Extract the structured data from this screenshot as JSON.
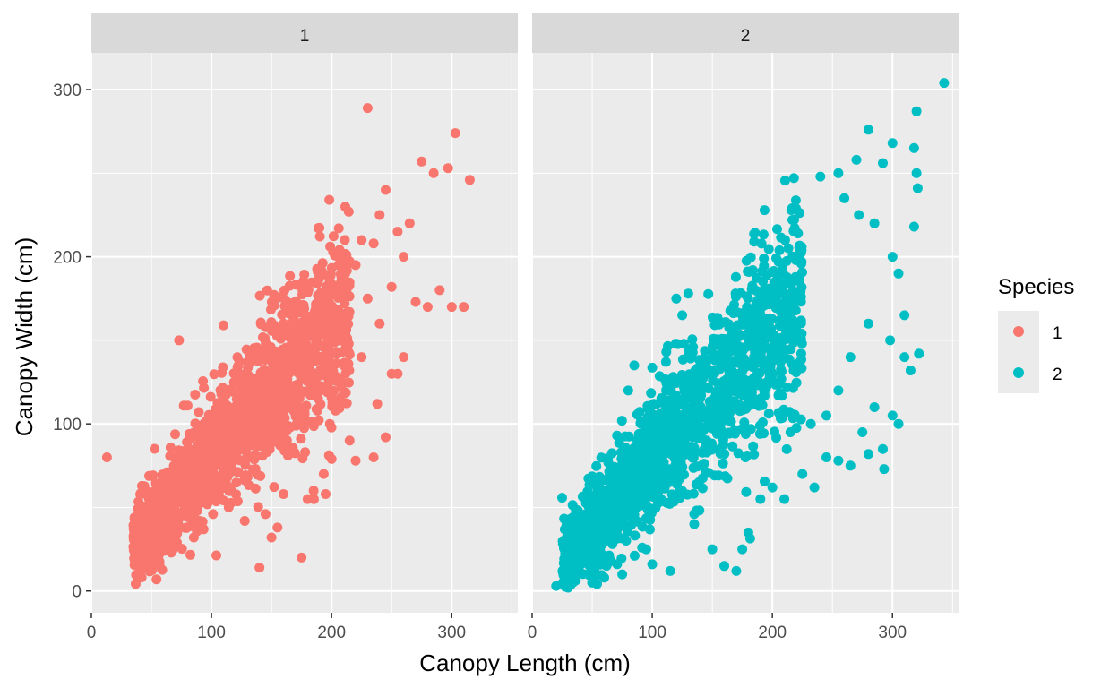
{
  "chart_data": {
    "type": "scatter",
    "xlabel": "Canopy Length (cm)",
    "ylabel": "Canopy Width (cm)",
    "xlim": [
      0,
      355
    ],
    "ylim": [
      -13,
      322
    ],
    "x_ticks": [
      0,
      100,
      200,
      300
    ],
    "y_ticks": [
      0,
      100,
      200,
      300
    ],
    "x_tick_labels": [
      "0",
      "100",
      "200",
      "300"
    ],
    "y_tick_labels": [
      "0",
      "100",
      "200",
      "300"
    ],
    "grid": true,
    "legend": {
      "title": "Species",
      "position": "right",
      "entries": [
        {
          "label": "1",
          "color": "#F8766D"
        },
        {
          "label": "2",
          "color": "#00BFC4"
        }
      ]
    },
    "panels": [
      {
        "strip_label": "1",
        "series": "1",
        "color": "#F8766D",
        "main_band": {
          "x_range": [
            35,
            215
          ],
          "slope": 0.8,
          "intercept": 0,
          "spread": 22,
          "count": 1600
        },
        "outliers": [
          [
            13,
            80
          ],
          [
            50,
            69
          ],
          [
            73,
            150
          ],
          [
            110,
            159
          ],
          [
            140,
            14
          ],
          [
            145,
            46
          ],
          [
            150,
            32
          ],
          [
            155,
            38
          ],
          [
            160,
            58
          ],
          [
            175,
            20
          ],
          [
            180,
            55
          ],
          [
            185,
            60
          ],
          [
            195,
            58
          ],
          [
            200,
            79
          ],
          [
            210,
            160
          ],
          [
            215,
            90
          ],
          [
            220,
            78
          ],
          [
            230,
            289
          ],
          [
            235,
            80
          ],
          [
            245,
            92
          ],
          [
            250,
            130
          ],
          [
            255,
            130
          ],
          [
            260,
            140
          ],
          [
            270,
            173
          ],
          [
            280,
            170
          ],
          [
            290,
            180
          ],
          [
            300,
            170
          ],
          [
            303,
            274
          ],
          [
            310,
            170
          ],
          [
            315,
            246
          ],
          [
            297,
            253
          ],
          [
            285,
            250
          ],
          [
            275,
            257
          ],
          [
            265,
            220
          ],
          [
            255,
            215
          ],
          [
            245,
            240
          ],
          [
            240,
            225
          ],
          [
            225,
            210
          ],
          [
            235,
            208
          ],
          [
            220,
            195
          ],
          [
            260,
            200
          ],
          [
            250,
            182
          ],
          [
            230,
            175
          ],
          [
            240,
            160
          ],
          [
            225,
            140
          ],
          [
            238,
            112
          ]
        ]
      },
      {
        "strip_label": "2",
        "series": "2",
        "color": "#00BFC4",
        "main_band": {
          "x_range": [
            25,
            225
          ],
          "slope": 0.78,
          "intercept": 0,
          "spread": 24,
          "count": 1500
        },
        "outliers": [
          [
            20,
            3
          ],
          [
            30,
            2
          ],
          [
            40,
            18
          ],
          [
            50,
            5
          ],
          [
            60,
            8
          ],
          [
            75,
            10
          ],
          [
            80,
            120
          ],
          [
            85,
            135
          ],
          [
            95,
            25
          ],
          [
            100,
            16
          ],
          [
            115,
            12
          ],
          [
            120,
            175
          ],
          [
            125,
            165
          ],
          [
            130,
            178
          ],
          [
            135,
            40
          ],
          [
            150,
            25
          ],
          [
            160,
            15
          ],
          [
            170,
            12
          ],
          [
            175,
            25
          ],
          [
            180,
            35
          ],
          [
            190,
            55
          ],
          [
            200,
            62
          ],
          [
            210,
            55
          ],
          [
            225,
            70
          ],
          [
            235,
            62
          ],
          [
            245,
            80
          ],
          [
            255,
            78
          ],
          [
            265,
            75
          ],
          [
            280,
            82
          ],
          [
            292,
            85
          ],
          [
            293,
            73
          ],
          [
            300,
            105
          ],
          [
            305,
            100
          ],
          [
            310,
            140
          ],
          [
            315,
            132
          ],
          [
            322,
            142
          ],
          [
            343,
            304
          ],
          [
            320,
            287
          ],
          [
            318,
            265
          ],
          [
            320,
            250
          ],
          [
            321,
            241
          ],
          [
            280,
            276
          ],
          [
            300,
            268
          ],
          [
            292,
            256
          ],
          [
            270,
            258
          ],
          [
            255,
            250
          ],
          [
            240,
            248
          ],
          [
            260,
            235
          ],
          [
            272,
            225
          ],
          [
            285,
            220
          ],
          [
            300,
            200
          ],
          [
            305,
            190
          ],
          [
            318,
            218
          ],
          [
            310,
            165
          ],
          [
            298,
            150
          ],
          [
            280,
            160
          ],
          [
            265,
            140
          ],
          [
            255,
            120
          ],
          [
            245,
            105
          ],
          [
            232,
            100
          ],
          [
            215,
            95
          ],
          [
            275,
            95
          ],
          [
            285,
            110
          ]
        ]
      }
    ]
  }
}
